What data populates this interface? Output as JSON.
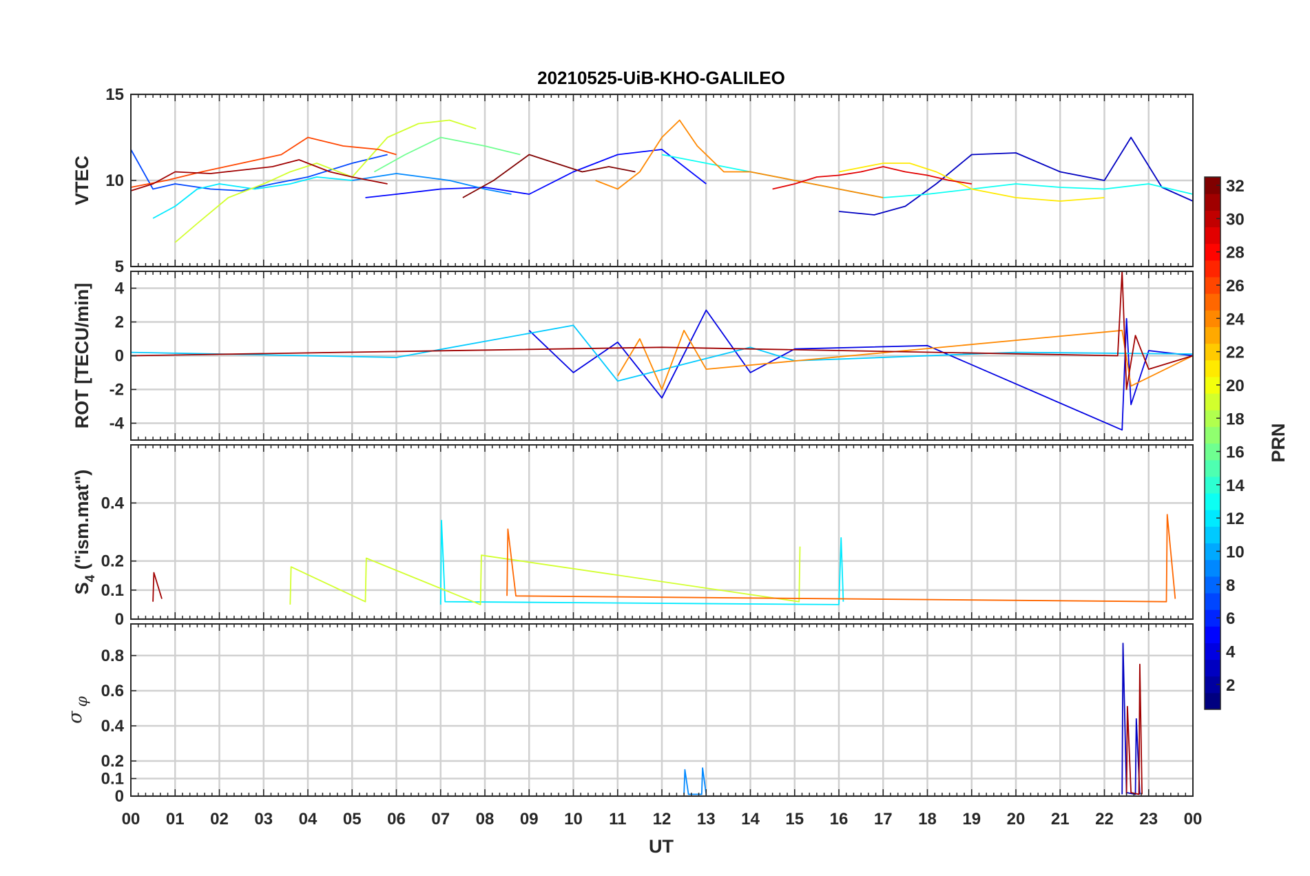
{
  "chart_data": {
    "title": "20210525-UiB-KHO-GALILEO",
    "type": "line",
    "xlabel": "UT",
    "x_ticks": [
      "00",
      "01",
      "02",
      "03",
      "04",
      "05",
      "06",
      "07",
      "08",
      "09",
      "10",
      "11",
      "12",
      "13",
      "14",
      "15",
      "16",
      "17",
      "18",
      "19",
      "20",
      "21",
      "22",
      "23",
      "00"
    ],
    "xlim_hours": [
      0,
      24
    ],
    "grid": true,
    "colorbar": {
      "label": "PRN",
      "range": [
        1,
        32
      ],
      "ticks": [
        "2",
        "4",
        "6",
        "8",
        "10",
        "12",
        "14",
        "16",
        "18",
        "20",
        "22",
        "24",
        "26",
        "28",
        "30",
        "32"
      ],
      "colormap": "jet",
      "placement": "right"
    },
    "panels": [
      {
        "ylabel": "VTEC",
        "ylim": [
          5,
          15
        ],
        "yticks": [
          "5",
          "10",
          "15"
        ],
        "series": [
          {
            "prn": 3,
            "x": [
              16.0,
              16.8,
              17.5,
              18.2,
              19.0,
              20.0,
              21.0,
              22.0,
              22.6,
              23.3,
              24.0
            ],
            "y": [
              8.2,
              8.0,
              8.5,
              9.8,
              11.5,
              11.6,
              10.5,
              10.0,
              12.5,
              9.6,
              8.8
            ]
          },
          {
            "prn": 5,
            "x": [
              5.3,
              6.0,
              7.0,
              8.0,
              9.0,
              10.0,
              11.0,
              12.0,
              13.0
            ],
            "y": [
              9.0,
              9.2,
              9.5,
              9.6,
              9.2,
              10.5,
              11.5,
              11.8,
              9.8
            ]
          },
          {
            "prn": 7,
            "x": [
              0.0,
              0.5,
              1.0,
              1.8,
              2.5,
              3.2,
              4.0,
              5.0,
              5.8
            ],
            "y": [
              11.8,
              9.5,
              9.8,
              9.5,
              9.4,
              9.8,
              10.2,
              11.0,
              11.5
            ]
          },
          {
            "prn": 9,
            "x": [
              5.0,
              6.0,
              7.2,
              8.0,
              8.6
            ],
            "y": [
              10.0,
              10.4,
              10.0,
              9.5,
              9.2
            ]
          },
          {
            "prn": 12,
            "x": [
              0.5,
              1.0,
              1.5,
              2.0,
              2.8,
              3.6,
              4.2,
              5.0
            ],
            "y": [
              7.8,
              8.5,
              9.5,
              9.8,
              9.5,
              9.8,
              10.2,
              10.0
            ]
          },
          {
            "prn": 13,
            "x": [
              12.0,
              13.0,
              14.0,
              15.0,
              16.0,
              17.0,
              18.0,
              19.0,
              20.0,
              21.0,
              22.0,
              23.0,
              24.0
            ],
            "y": [
              11.5,
              11.0,
              10.5,
              10.0,
              9.5,
              9.0,
              9.2,
              9.5,
              9.8,
              9.6,
              9.5,
              9.8,
              9.2
            ]
          },
          {
            "prn": 16,
            "x": [
              5.5,
              6.2,
              7.0,
              8.0,
              8.8
            ],
            "y": [
              10.5,
              11.5,
              12.5,
              12.0,
              11.5
            ]
          },
          {
            "prn": 19,
            "x": [
              1.0,
              1.5,
              2.2,
              3.0,
              3.6,
              4.2,
              5.0,
              5.8,
              6.5,
              7.2,
              7.8
            ],
            "y": [
              6.4,
              7.5,
              9.0,
              9.8,
              10.5,
              11.0,
              10.2,
              12.5,
              13.3,
              13.5,
              13.0
            ]
          },
          {
            "prn": 21,
            "x": [
              16.0,
              17.0,
              17.6,
              18.2,
              19.0,
              20.0,
              21.0,
              22.0
            ],
            "y": [
              10.5,
              11.0,
              11.0,
              10.5,
              9.5,
              9.0,
              8.8,
              9.0
            ]
          },
          {
            "prn": 24,
            "x": [
              10.5,
              11.0,
              11.5,
              12.0,
              12.4,
              12.8,
              13.4,
              14.0,
              15.0,
              16.0,
              17.0
            ],
            "y": [
              10.0,
              9.5,
              10.5,
              12.5,
              13.5,
              12.0,
              10.5,
              10.5,
              10.0,
              9.5,
              9.0
            ]
          },
          {
            "prn": 26,
            "x": [
              0.0,
              0.8,
              1.6,
              2.5,
              3.4,
              4.0,
              4.8,
              5.6,
              6.0
            ],
            "y": [
              9.6,
              10.0,
              10.5,
              11.0,
              11.5,
              12.5,
              12.0,
              11.8,
              11.5
            ]
          },
          {
            "prn": 29,
            "x": [
              14.5,
              15.0,
              15.5,
              16.0,
              16.5,
              17.0,
              17.5,
              18.0,
              18.5,
              19.0
            ],
            "y": [
              9.5,
              9.8,
              10.2,
              10.3,
              10.5,
              10.8,
              10.5,
              10.3,
              10.0,
              9.8
            ]
          },
          {
            "prn": 31,
            "x": [
              0.0,
              0.5,
              1.0,
              1.8,
              2.5,
              3.2,
              3.8,
              4.5,
              5.0,
              5.8
            ],
            "y": [
              9.4,
              9.8,
              10.5,
              10.4,
              10.6,
              10.8,
              11.2,
              10.5,
              10.2,
              9.8
            ]
          },
          {
            "prn": 32,
            "x": [
              7.5,
              8.2,
              9.0,
              9.6,
              10.2,
              10.8,
              11.4
            ],
            "y": [
              9.0,
              10.0,
              11.5,
              11.0,
              10.5,
              10.8,
              10.5
            ]
          }
        ]
      },
      {
        "ylabel": "ROT [TECU/min]",
        "ylim": [
          -5,
          5
        ],
        "yticks": [
          "-4",
          "-2",
          "0",
          "2",
          "4"
        ],
        "series": [
          {
            "prn": 4,
            "x": [
              9.0,
              10.0,
              11.0,
              12.0,
              13.0,
              14.0,
              15.0,
              18.0,
              22.4,
              22.5,
              22.6,
              23.0,
              24.0
            ],
            "y": [
              1.5,
              -1.0,
              0.8,
              -2.5,
              2.7,
              -1.0,
              0.4,
              0.6,
              -4.4,
              2.2,
              -2.9,
              0.3,
              0.0
            ]
          },
          {
            "prn": 11,
            "x": [
              0.0,
              6.0,
              10.0,
              11.0,
              14.0,
              15.0,
              20.0,
              24.0
            ],
            "y": [
              0.2,
              -0.1,
              1.8,
              -1.5,
              0.5,
              -0.3,
              0.2,
              0.1
            ]
          },
          {
            "prn": 24,
            "x": [
              11.0,
              11.5,
              12.0,
              12.5,
              13.0,
              22.4,
              22.6,
              24.0
            ],
            "y": [
              -1.2,
              1.0,
              -2.0,
              1.5,
              -0.8,
              1.5,
              -1.8,
              0.0
            ]
          },
          {
            "prn": 31,
            "x": [
              0.0,
              12.0,
              22.3,
              22.4,
              22.5,
              22.7,
              23.0,
              24.0
            ],
            "y": [
              0.0,
              0.5,
              0.0,
              5.0,
              -2.0,
              1.2,
              -0.8,
              0.0
            ]
          }
        ]
      },
      {
        "ylabel": "S4 (\"ism.mat\")",
        "ylabel_main": "S",
        "ylabel_sub": "4",
        "ylabel_rest": " (\"ism.mat\")",
        "ylim": [
          0,
          0.6
        ],
        "yticks": [
          "0",
          "0.1",
          "0.2",
          "0.4"
        ],
        "series": [
          {
            "prn": 12,
            "x": [
              7.0,
              7.02,
              7.1,
              16.0,
              16.05,
              16.1
            ],
            "y": [
              0.05,
              0.34,
              0.06,
              0.05,
              0.28,
              0.06
            ]
          },
          {
            "prn": 19,
            "x": [
              3.6,
              3.62,
              5.3,
              5.32,
              7.9,
              7.92,
              15.1,
              15.12
            ],
            "y": [
              0.05,
              0.18,
              0.06,
              0.21,
              0.05,
              0.22,
              0.06,
              0.25
            ]
          },
          {
            "prn": 25,
            "x": [
              8.5,
              8.52,
              8.7,
              23.4,
              23.42,
              23.6
            ],
            "y": [
              0.08,
              0.31,
              0.08,
              0.06,
              0.36,
              0.07
            ]
          },
          {
            "prn": 31,
            "x": [
              0.5,
              0.52,
              0.7
            ],
            "y": [
              0.06,
              0.16,
              0.07
            ]
          }
        ]
      },
      {
        "ylabel": "σφ",
        "ylabel_sigma": "σ",
        "ylabel_phi": "φ",
        "ylim": [
          0,
          0.98
        ],
        "yticks": [
          "0",
          "0.1",
          "0.2",
          "0.4",
          "0.6",
          "0.8"
        ],
        "series": [
          {
            "prn": 3,
            "x": [
              22.4,
              22.42,
              22.5,
              22.7,
              22.72,
              22.8
            ],
            "y": [
              0.01,
              0.87,
              0.02,
              0.01,
              0.44,
              0.01
            ]
          },
          {
            "prn": 9,
            "x": [
              12.5,
              12.52,
              12.6,
              12.9,
              12.92,
              13.0
            ],
            "y": [
              0.01,
              0.15,
              0.01,
              0.01,
              0.16,
              0.01
            ]
          },
          {
            "prn": 31,
            "x": [
              22.5,
              22.52,
              22.6,
              22.78,
              22.8,
              22.85
            ],
            "y": [
              0.01,
              0.51,
              0.02,
              0.01,
              0.75,
              0.01
            ]
          }
        ]
      }
    ]
  }
}
